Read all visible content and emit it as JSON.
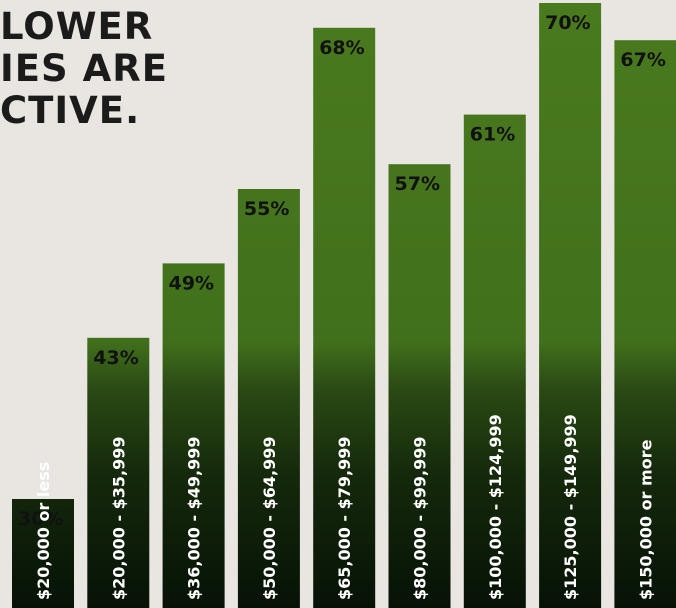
{
  "headline": {
    "line1": "LOWER",
    "line2": "IES ARE",
    "line3": "CTIVE."
  },
  "colors": {
    "background": "#e9e6e1",
    "bar_top": "#4a7a1e",
    "bar_bottom": "#061206",
    "label_text": "#111111",
    "category_text": "#ffffff"
  },
  "chart_data": {
    "type": "bar",
    "categories": [
      "$20,000 or less",
      "$20,000 - $35,999",
      "$36,000 - $49,999",
      "$50,000 - $64,999",
      "$65,000 - $79,999",
      "$80,000 - $99,999",
      "$100,000 - $124,999",
      "$125,000 - $149,999",
      "$150,000 or more"
    ],
    "values": [
      30,
      43,
      49,
      55,
      68,
      57,
      61,
      70,
      67
    ],
    "value_labels": [
      "30%",
      "43%",
      "49%",
      "55%",
      "68%",
      "57%",
      "61%",
      "70%",
      "67%"
    ],
    "unit": "%",
    "title": "",
    "xlabel": "",
    "ylabel": "",
    "grid": false,
    "legend": "none"
  }
}
